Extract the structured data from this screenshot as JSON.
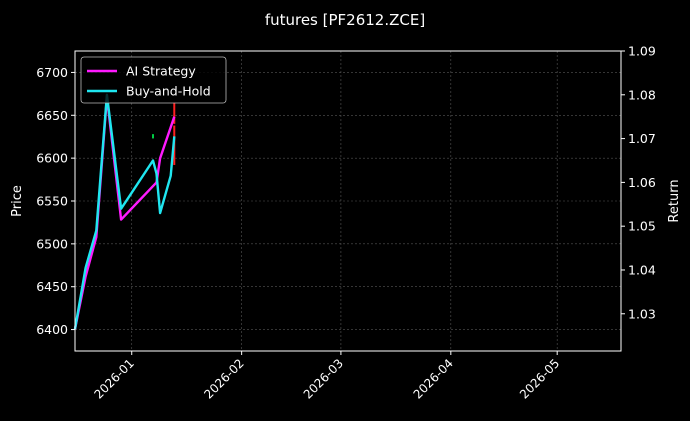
{
  "chart_data": {
    "type": "line",
    "title": "futures [PF2612.ZCE]",
    "xlabel": "",
    "ylabel": "Price",
    "y2label": "Return",
    "x_ticks": [
      "2026-01",
      "2026-02",
      "2026-03",
      "2026-04",
      "2026-05"
    ],
    "xlim": [
      "2025-12-16",
      "2026-05-19"
    ],
    "ylim": [
      6375,
      6725
    ],
    "y_ticks": [
      6400,
      6450,
      6500,
      6550,
      6600,
      6650,
      6700
    ],
    "y2lim": [
      1.0215,
      1.09
    ],
    "y2_ticks": [
      "1.03",
      "1.04",
      "1.05",
      "1.06",
      "1.07",
      "1.08",
      "1.09"
    ],
    "grid": true,
    "legend": "top-left",
    "series": [
      {
        "name": "AI Strategy",
        "color": "#ff1aff",
        "axis": "right",
        "points": [
          [
            "2025-12-16",
            1.0265
          ],
          [
            "2025-12-19",
            1.0385
          ],
          [
            "2025-12-22",
            1.0475
          ],
          [
            "2025-12-25",
            1.0795
          ],
          [
            "2025-12-29",
            1.0515
          ],
          [
            "2026-01-08",
            1.06
          ],
          [
            "2026-01-09",
            1.0655
          ],
          [
            "2026-01-13",
            1.075
          ]
        ]
      },
      {
        "name": "Buy-and-Hold",
        "color": "#1fe6f0",
        "axis": "right",
        "points": [
          [
            "2025-12-16",
            1.0265
          ],
          [
            "2025-12-19",
            1.0405
          ],
          [
            "2025-12-22",
            1.049
          ],
          [
            "2025-12-25",
            1.08
          ],
          [
            "2025-12-29",
            1.054
          ],
          [
            "2026-01-07",
            1.065
          ],
          [
            "2026-01-08",
            1.062
          ],
          [
            "2026-01-09",
            1.053
          ],
          [
            "2026-01-12",
            1.0615
          ],
          [
            "2026-01-13",
            1.0705
          ]
        ]
      }
    ],
    "candles": [
      {
        "date": "2026-01-07",
        "open": 6623,
        "close": 6628,
        "color": "#00cc44"
      },
      {
        "date": "2026-01-13",
        "open": 6665,
        "close": 6640,
        "color": "#ff2020"
      },
      {
        "date": "2026-01-13",
        "open": 6638,
        "close": 6592,
        "color": "#ff2020"
      }
    ]
  }
}
